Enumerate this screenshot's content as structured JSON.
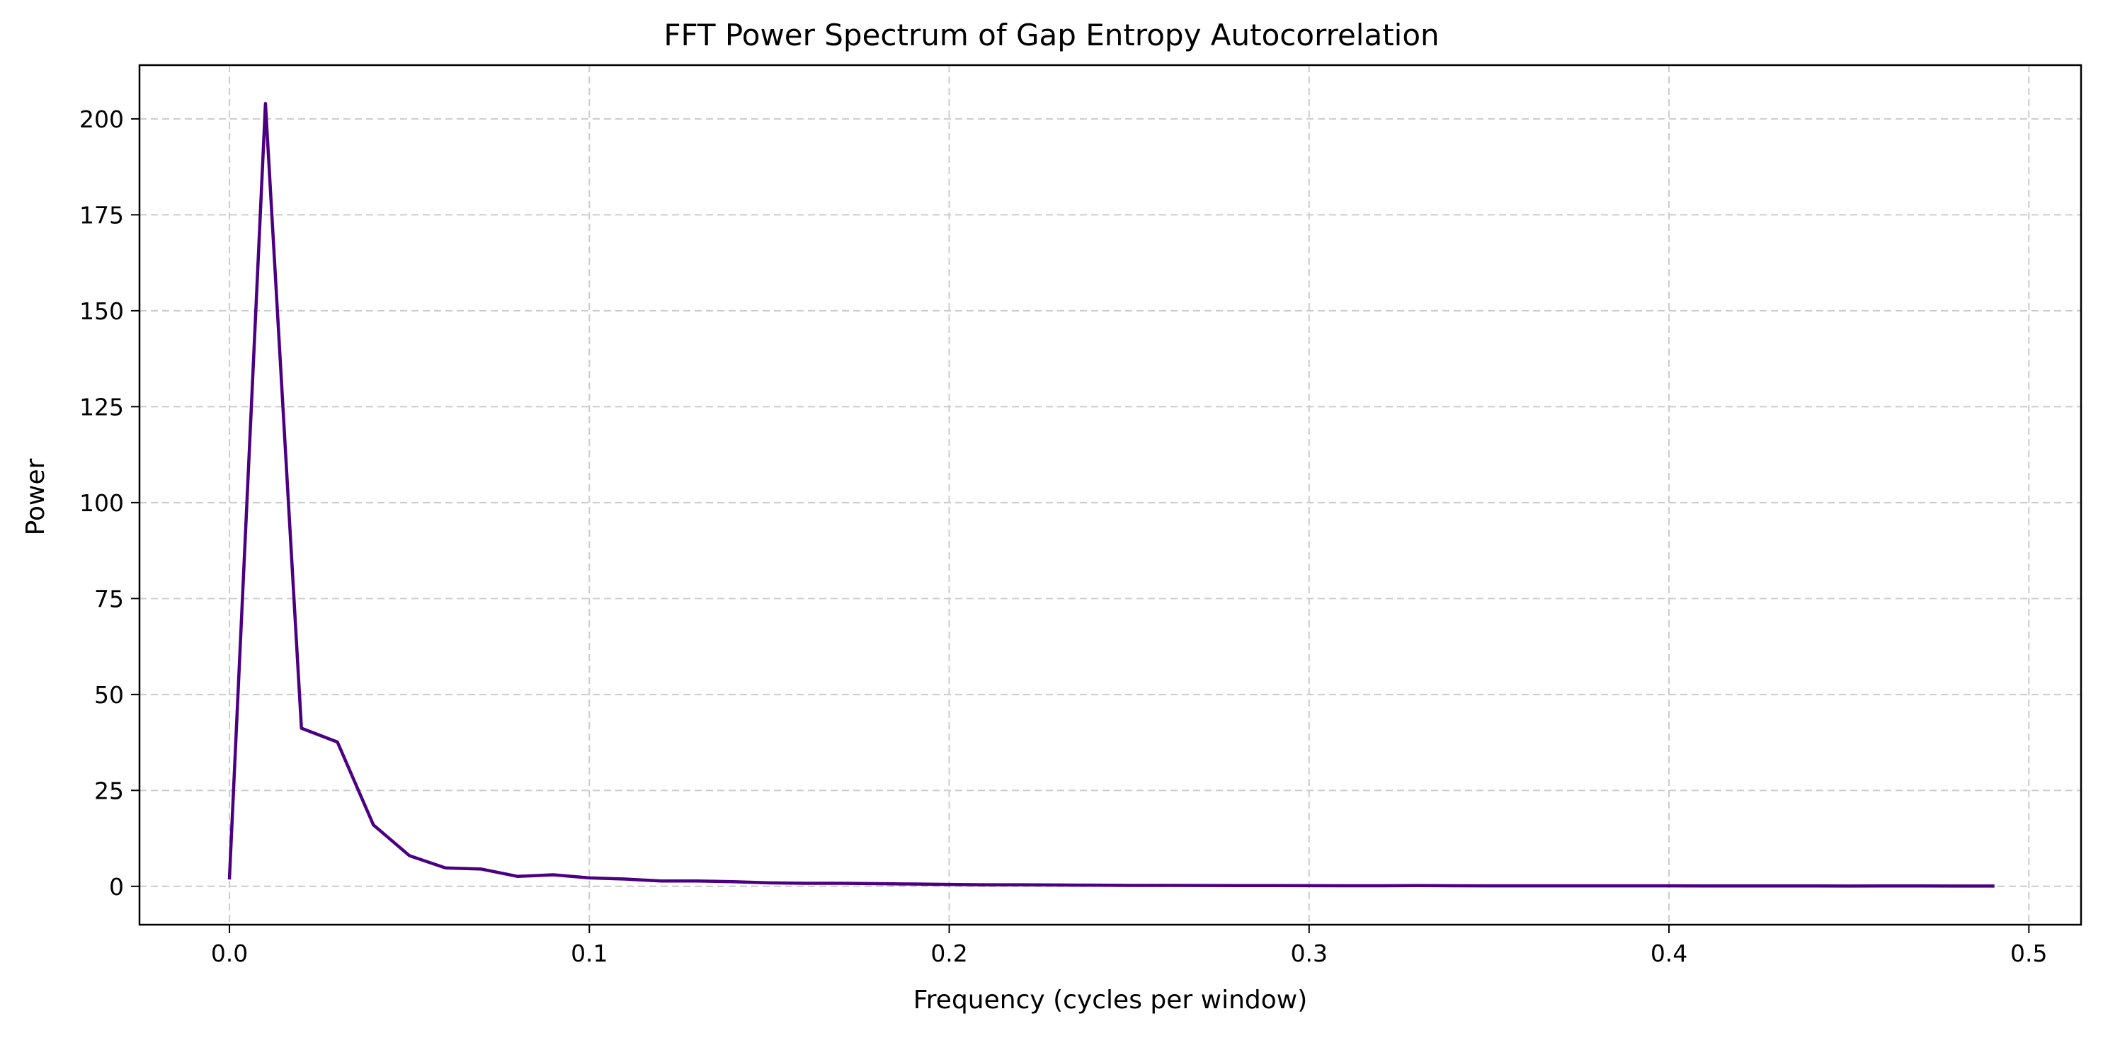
{
  "chart_data": {
    "type": "line",
    "title": "FFT Power Spectrum of Gap Entropy Autocorrelation",
    "xlabel": "Frequency (cycles per window)",
    "ylabel": "Power",
    "xlim": [
      -0.025,
      0.5145
    ],
    "ylim": [
      -10,
      214
    ],
    "xticks": [
      0.0,
      0.1,
      0.2,
      0.3,
      0.4,
      0.5
    ],
    "xtick_labels": [
      "0.0",
      "0.1",
      "0.2",
      "0.3",
      "0.4",
      "0.5"
    ],
    "yticks": [
      0,
      25,
      50,
      75,
      100,
      125,
      150,
      175,
      200
    ],
    "ytick_labels": [
      "0",
      "25",
      "50",
      "75",
      "100",
      "125",
      "150",
      "175",
      "200"
    ],
    "grid": true,
    "series": [
      {
        "name": "power",
        "color": "#4b0082",
        "x": [
          0.0,
          0.01,
          0.02,
          0.03,
          0.04,
          0.05,
          0.06,
          0.07,
          0.08,
          0.09,
          0.1,
          0.11,
          0.12,
          0.13,
          0.14,
          0.15,
          0.16,
          0.17,
          0.18,
          0.19,
          0.2,
          0.21,
          0.22,
          0.23,
          0.24,
          0.25,
          0.26,
          0.27,
          0.28,
          0.29,
          0.3,
          0.31,
          0.32,
          0.33,
          0.34,
          0.35,
          0.36,
          0.37,
          0.38,
          0.39,
          0.4,
          0.41,
          0.42,
          0.43,
          0.44,
          0.45,
          0.46,
          0.47,
          0.48,
          0.49
        ],
        "y": [
          2.2,
          204.0,
          41.2,
          37.6,
          16.0,
          8.0,
          4.8,
          4.5,
          2.6,
          3.0,
          2.2,
          1.9,
          1.4,
          1.4,
          1.2,
          0.9,
          0.8,
          0.8,
          0.7,
          0.6,
          0.5,
          0.4,
          0.4,
          0.35,
          0.3,
          0.25,
          0.25,
          0.22,
          0.2,
          0.2,
          0.18,
          0.16,
          0.16,
          0.2,
          0.14,
          0.12,
          0.12,
          0.12,
          0.12,
          0.12,
          0.12,
          0.1,
          0.1,
          0.1,
          0.1,
          0.08,
          0.1,
          0.1,
          0.08,
          0.08
        ]
      }
    ]
  }
}
